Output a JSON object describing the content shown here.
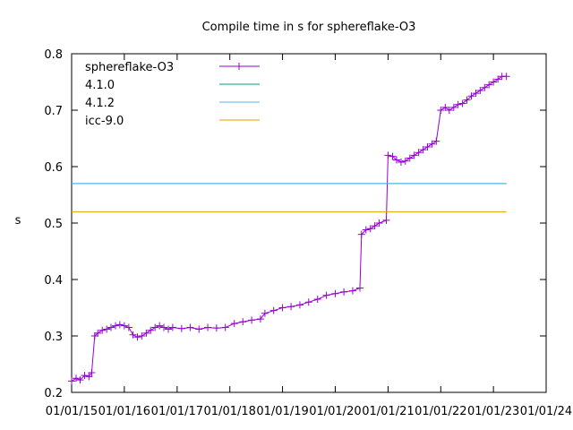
{
  "chart_data": {
    "type": "line",
    "title": "Compile time in s for sphereflake-O3",
    "xlabel": "",
    "ylabel": "s",
    "x_axis_kind": "date",
    "xlim": [
      "2015-01-01",
      "2024-01-01"
    ],
    "ylim": [
      0.2,
      0.8
    ],
    "x_ticks": [
      "01/01/15",
      "01/01/16",
      "01/01/17",
      "01/01/18",
      "01/01/19",
      "01/01/20",
      "01/01/21",
      "01/01/22",
      "01/01/23",
      "01/01/24"
    ],
    "x_tick_dates": [
      "2015-01-01",
      "2016-01-01",
      "2017-01-01",
      "2018-01-01",
      "2019-01-01",
      "2020-01-01",
      "2021-01-01",
      "2022-01-01",
      "2023-01-01",
      "2024-01-01"
    ],
    "y_ticks": [
      "0.2",
      "0.3",
      "0.4",
      "0.5",
      "0.6",
      "0.7",
      "0.8"
    ],
    "y_tick_values": [
      0.2,
      0.3,
      0.4,
      0.5,
      0.6,
      0.7,
      0.8
    ],
    "grid": false,
    "legend_position": "top-left",
    "series": [
      {
        "name": "sphereflake-O3",
        "kind": "line-points",
        "marker": "plus",
        "color": "#9400d3",
        "points": [
          [
            "2015-01-01",
            0.22
          ],
          [
            "2015-02-01",
            0.225
          ],
          [
            "2015-03-01",
            0.222
          ],
          [
            "2015-04-01",
            0.23
          ],
          [
            "2015-05-01",
            0.228
          ],
          [
            "2015-05-20",
            0.235
          ],
          [
            "2015-06-10",
            0.3
          ],
          [
            "2015-07-01",
            0.305
          ],
          [
            "2015-08-01",
            0.31
          ],
          [
            "2015-09-01",
            0.312
          ],
          [
            "2015-10-01",
            0.315
          ],
          [
            "2015-11-01",
            0.318
          ],
          [
            "2015-12-01",
            0.32
          ],
          [
            "2016-01-01",
            0.318
          ],
          [
            "2016-02-01",
            0.315
          ],
          [
            "2016-03-01",
            0.302
          ],
          [
            "2016-04-01",
            0.298
          ],
          [
            "2016-05-01",
            0.3
          ],
          [
            "2016-06-01",
            0.305
          ],
          [
            "2016-07-01",
            0.31
          ],
          [
            "2016-08-01",
            0.315
          ],
          [
            "2016-09-01",
            0.318
          ],
          [
            "2016-10-01",
            0.315
          ],
          [
            "2016-11-01",
            0.312
          ],
          [
            "2016-12-01",
            0.315
          ],
          [
            "2017-02-01",
            0.313
          ],
          [
            "2017-04-01",
            0.315
          ],
          [
            "2017-06-01",
            0.312
          ],
          [
            "2017-08-01",
            0.315
          ],
          [
            "2017-10-01",
            0.314
          ],
          [
            "2017-12-01",
            0.315
          ],
          [
            "2018-02-01",
            0.322
          ],
          [
            "2018-04-01",
            0.325
          ],
          [
            "2018-06-01",
            0.328
          ],
          [
            "2018-08-01",
            0.33
          ],
          [
            "2018-09-01",
            0.34
          ],
          [
            "2018-11-01",
            0.345
          ],
          [
            "2019-01-01",
            0.35
          ],
          [
            "2019-03-01",
            0.352
          ],
          [
            "2019-05-01",
            0.355
          ],
          [
            "2019-07-01",
            0.36
          ],
          [
            "2019-09-01",
            0.365
          ],
          [
            "2019-11-01",
            0.372
          ],
          [
            "2020-01-01",
            0.375
          ],
          [
            "2020-03-01",
            0.378
          ],
          [
            "2020-05-01",
            0.38
          ],
          [
            "2020-06-20",
            0.385
          ],
          [
            "2020-07-01",
            0.48
          ],
          [
            "2020-08-01",
            0.488
          ],
          [
            "2020-09-01",
            0.49
          ],
          [
            "2020-10-01",
            0.495
          ],
          [
            "2020-11-01",
            0.5
          ],
          [
            "2020-12-20",
            0.505
          ],
          [
            "2021-01-01",
            0.62
          ],
          [
            "2021-02-01",
            0.618
          ],
          [
            "2021-03-01",
            0.612
          ],
          [
            "2021-04-01",
            0.608
          ],
          [
            "2021-05-01",
            0.61
          ],
          [
            "2021-06-01",
            0.615
          ],
          [
            "2021-07-01",
            0.62
          ],
          [
            "2021-08-01",
            0.625
          ],
          [
            "2021-09-01",
            0.63
          ],
          [
            "2021-10-01",
            0.635
          ],
          [
            "2021-11-01",
            0.64
          ],
          [
            "2021-12-01",
            0.645
          ],
          [
            "2022-01-01",
            0.7
          ],
          [
            "2022-02-01",
            0.705
          ],
          [
            "2022-03-01",
            0.7
          ],
          [
            "2022-04-01",
            0.705
          ],
          [
            "2022-05-01",
            0.71
          ],
          [
            "2022-06-01",
            0.712
          ],
          [
            "2022-07-01",
            0.718
          ],
          [
            "2022-08-01",
            0.725
          ],
          [
            "2022-09-01",
            0.73
          ],
          [
            "2022-10-01",
            0.735
          ],
          [
            "2022-11-01",
            0.74
          ],
          [
            "2022-12-01",
            0.745
          ],
          [
            "2023-01-01",
            0.75
          ],
          [
            "2023-02-01",
            0.755
          ],
          [
            "2023-03-01",
            0.76
          ],
          [
            "2023-04-01",
            0.76
          ]
        ]
      },
      {
        "name": "4.1.0",
        "kind": "constant",
        "color": "#009e73",
        "y": 0.57,
        "x_range": [
          "2015-01-01",
          "2023-04-01"
        ]
      },
      {
        "name": "4.1.2",
        "kind": "constant",
        "color": "#56b4e9",
        "y": 0.57,
        "x_range": [
          "2015-01-01",
          "2023-04-01"
        ]
      },
      {
        "name": "icc-9.0",
        "kind": "constant",
        "color": "#e69f00",
        "y": 0.52,
        "x_range": [
          "2015-01-01",
          "2023-04-01"
        ]
      }
    ]
  }
}
